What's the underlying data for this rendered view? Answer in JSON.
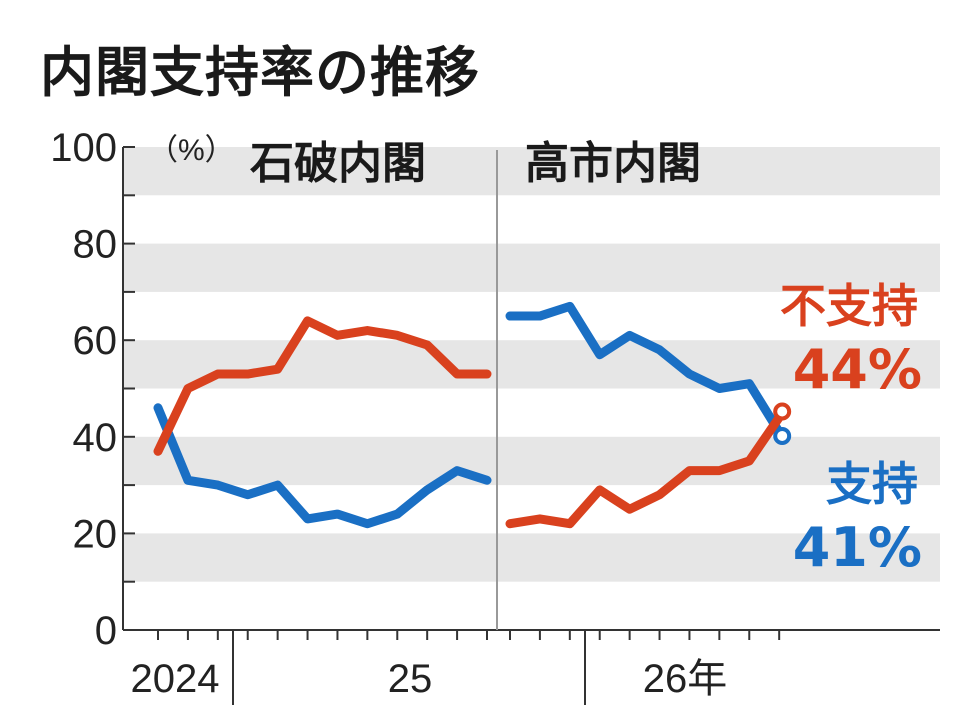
{
  "title": "内閣支持率の推移",
  "chart_data": {
    "type": "line",
    "title": "内閣支持率の推移",
    "y_unit": "（%）",
    "ylim": [
      0,
      100
    ],
    "y_ticks": [
      "100",
      "80",
      "60",
      "40",
      "20",
      "0"
    ],
    "x_tick_labels": [
      "2024",
      "25",
      "26年"
    ],
    "grid": "horizontal bands",
    "colors": {
      "support": "#1a6fc4",
      "disapprove": "#d9411e",
      "band": "#e6e6e6",
      "divider": "#999999"
    },
    "periods": [
      {
        "name": "石破内閣",
        "series": [
          {
            "key": "support",
            "values": [
              46,
              31,
              30,
              28,
              30,
              23,
              24,
              22,
              24,
              29,
              33,
              31
            ]
          },
          {
            "key": "disapprove",
            "values": [
              37,
              50,
              53,
              53,
              54,
              64,
              61,
              62,
              61,
              59,
              53,
              53
            ]
          }
        ]
      },
      {
        "name": "高市内閣",
        "series": [
          {
            "key": "support",
            "values": [
              65,
              65,
              67,
              57,
              61,
              58,
              53,
              50,
              51,
              41
            ]
          },
          {
            "key": "disapprove",
            "values": [
              22,
              23,
              22,
              29,
              25,
              28,
              33,
              33,
              35,
              44
            ]
          }
        ]
      }
    ],
    "end_labels": {
      "disapprove": {
        "name": "不支持",
        "value": "44%"
      },
      "support": {
        "name": "支持",
        "value": "41%"
      }
    }
  }
}
